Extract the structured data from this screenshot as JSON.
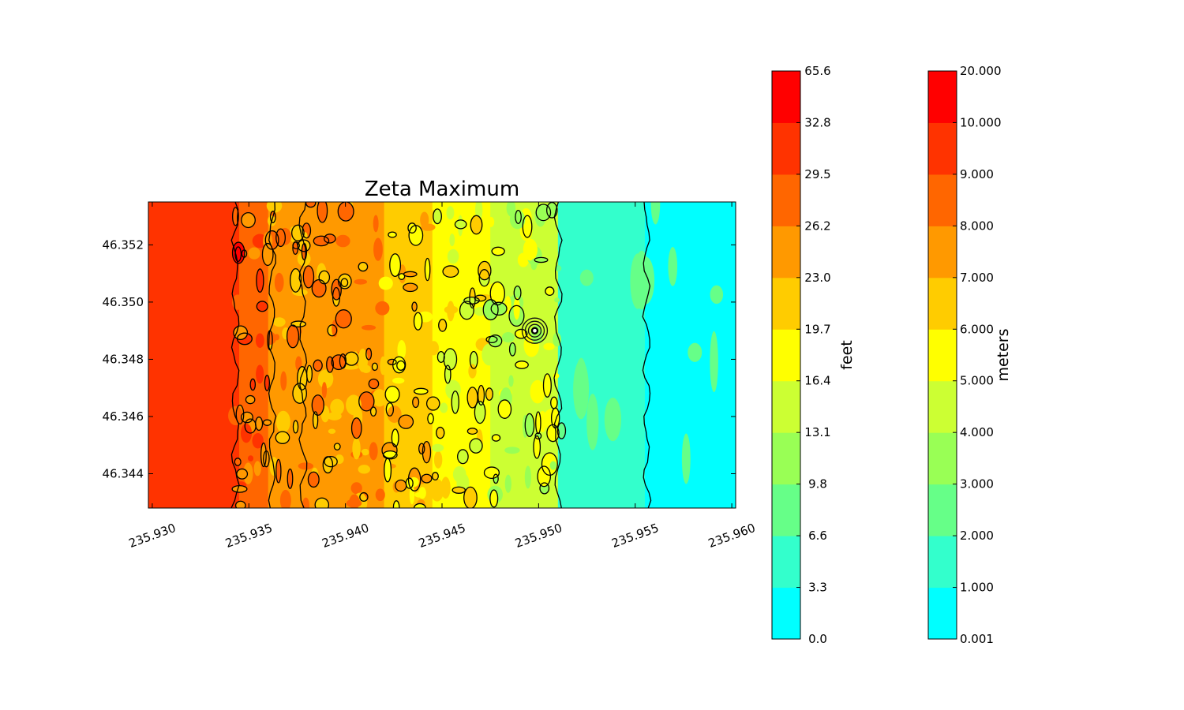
{
  "chart_data": {
    "type": "heatmap",
    "title": "Zeta Maximum",
    "xlabel": "",
    "ylabel": "",
    "xlim": [
      235.9298,
      235.9602
    ],
    "ylim": [
      46.3428,
      46.3535
    ],
    "x_ticks": [
      "235.930",
      "235.935",
      "235.940",
      "235.945",
      "235.950",
      "235.955",
      "235.960"
    ],
    "y_ticks": [
      "46.344",
      "46.346",
      "46.348",
      "46.350",
      "46.352"
    ],
    "zones": [
      {
        "x_from": 235.9298,
        "x_to": 235.9345,
        "value_m": 9.5
      },
      {
        "x_from": 235.9345,
        "x_to": 235.936,
        "value_m": 8.5
      },
      {
        "x_from": 235.936,
        "x_to": 235.9378,
        "value_m": 7.0
      },
      {
        "x_from": 235.9378,
        "x_to": 235.942,
        "value_m": 7.5
      },
      {
        "x_from": 235.942,
        "x_to": 235.9445,
        "value_m": 6.5
      },
      {
        "x_from": 235.9445,
        "x_to": 235.9475,
        "value_m": 5.5
      },
      {
        "x_from": 235.9475,
        "x_to": 235.951,
        "value_m": 4.5
      },
      {
        "x_from": 235.951,
        "x_to": 235.9555,
        "value_m": 1.8
      },
      {
        "x_from": 235.9555,
        "x_to": 235.9602,
        "value_m": 0.8
      }
    ],
    "colorbars": [
      {
        "label": "feet",
        "tick_labels": [
          "0.0",
          "3.3",
          "6.6",
          "9.8",
          "13.1",
          "16.4",
          "19.7",
          "23.0",
          "26.2",
          "29.5",
          "32.8",
          "65.6"
        ],
        "tick_align": "center"
      },
      {
        "label": "meters",
        "tick_labels": [
          "0.001",
          "1.000",
          "2.000",
          "3.000",
          "4.000",
          "5.000",
          "6.000",
          "7.000",
          "8.000",
          "9.000",
          "10.000",
          "20.000"
        ],
        "tick_align": "left"
      }
    ],
    "levels_colors": [
      "#00ffff",
      "#33ffcc",
      "#66ff88",
      "#99ff55",
      "#ccff33",
      "#ffff00",
      "#ffcc00",
      "#ff9900",
      "#ff6600",
      "#ff3300",
      "#ff0000"
    ],
    "grid": false
  }
}
